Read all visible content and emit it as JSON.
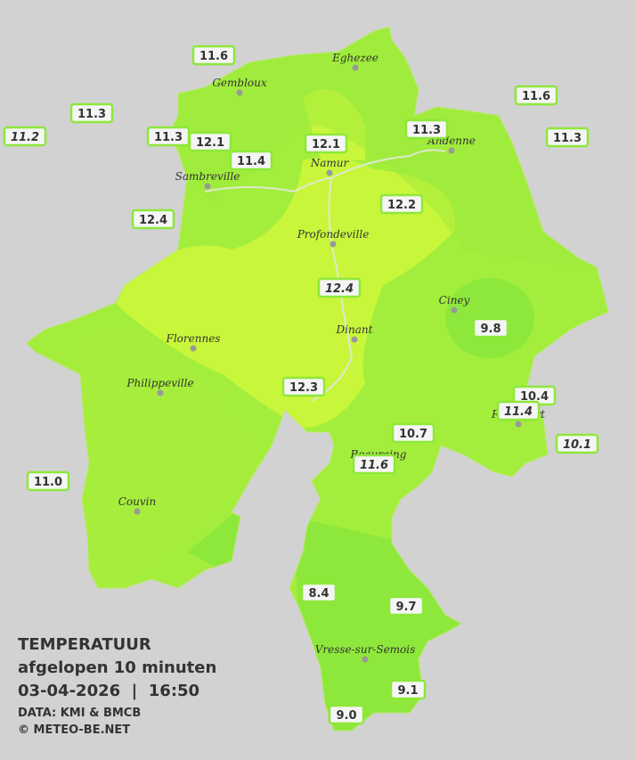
{
  "title": "TEMPERATUUR",
  "subtitle": "afgelopen 10 minuten",
  "timestamp": "03-04-2026  |  16:50",
  "source": "DATA: KMI & BMCB",
  "credit": "© METEO-BE.NET",
  "cities": [
    "Eghezee",
    "Gembloux",
    "Andenne",
    "Namur",
    "Sambreville",
    "Profondeville",
    "Ciney",
    "Dinant",
    "Florennes",
    "Philippeville",
    "Rochefort",
    "Beauraing",
    "Couvin",
    "Vresse-sur-Semois"
  ],
  "stations": [
    "11.6",
    "11.3",
    "11.2",
    "11.3",
    "12.1",
    "11.4",
    "12.1",
    "11.3",
    "11.6",
    "11.3",
    "12.4",
    "12.2",
    "12.4",
    "9.8",
    "12.3",
    "10.4",
    "11.4",
    "10.7",
    "10.1",
    "11.6",
    "11.0",
    "8.4",
    "9.7",
    "9.1",
    "9.0"
  ],
  "italic_stations": [
    2,
    12,
    16,
    18,
    19
  ]
}
